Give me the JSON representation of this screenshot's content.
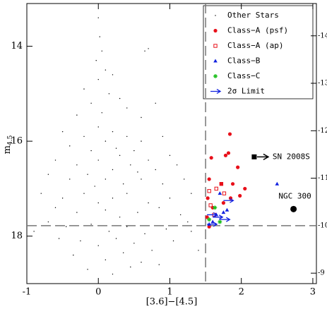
{
  "chart_data": {
    "type": "scatter",
    "xlabel": "[3.6]−[4.5]",
    "ylabel": "m",
    "ylabel_sub": "4.5",
    "xlim": [
      -1,
      3.05
    ],
    "xticks": [
      -1,
      0,
      1,
      2,
      3
    ],
    "ylim": [
      19.0,
      13.1
    ],
    "yticks": [
      14,
      16,
      18
    ],
    "y2lim": [
      -8.78,
      -14.68
    ],
    "y2ticks": [
      -9,
      -10,
      -11,
      -12,
      -13,
      -14
    ],
    "vline": 1.5,
    "hline": 17.78,
    "legend": "upper right",
    "series": [
      {
        "name": "Other Stars",
        "marker": "dot",
        "color": "#000000",
        "x": [
          0.0,
          0.02,
          0.05,
          -0.03,
          0.1,
          0.0,
          0.2,
          0.7,
          0.65,
          -0.2,
          0.15,
          0.3,
          -0.1,
          0.05,
          0.4,
          0.6,
          -0.3,
          0.8,
          -0.5,
          -0.2,
          0.0,
          0.2,
          0.4,
          0.6,
          0.9,
          -0.4,
          -0.1,
          0.1,
          0.3,
          0.5,
          0.7,
          1.0,
          -0.6,
          -0.3,
          0.0,
          0.2,
          0.45,
          0.8,
          1.1,
          -0.7,
          -0.4,
          -0.15,
          0.1,
          0.35,
          0.6,
          0.9,
          1.2,
          -0.05,
          0.25,
          0.55,
          -0.8,
          -0.5,
          -0.2,
          0.0,
          0.2,
          0.4,
          0.7,
          1.0,
          1.3,
          -0.6,
          -0.3,
          0.1,
          0.3,
          0.55,
          0.85,
          1.15,
          -0.7,
          -0.45,
          -0.1,
          0.15,
          0.4,
          0.65,
          0.95,
          1.25,
          -0.55,
          -0.25,
          0.0,
          0.25,
          0.5,
          0.75,
          1.05,
          -0.35,
          0.1,
          0.35,
          0.6,
          -0.15,
          0.2,
          0.45,
          0.85,
          1.3,
          1.4,
          -0.9
        ],
        "values": [
          13.4,
          13.8,
          14.1,
          14.3,
          14.5,
          14.7,
          14.6,
          14.05,
          14.1,
          14.9,
          15.0,
          15.1,
          15.2,
          15.4,
          15.3,
          15.5,
          15.45,
          15.2,
          15.8,
          15.9,
          15.7,
          15.8,
          15.9,
          16.0,
          15.9,
          16.1,
          16.2,
          16.0,
          16.3,
          16.2,
          16.4,
          16.3,
          16.4,
          16.5,
          16.4,
          16.6,
          16.5,
          16.6,
          16.5,
          16.7,
          16.8,
          16.7,
          16.8,
          16.9,
          16.8,
          16.9,
          16.8,
          16.95,
          16.15,
          16.65,
          17.1,
          17.2,
          17.1,
          17.3,
          17.2,
          17.1,
          17.3,
          17.2,
          17.1,
          17.4,
          17.5,
          17.45,
          17.6,
          17.5,
          17.4,
          17.55,
          17.7,
          17.8,
          17.75,
          17.9,
          17.8,
          17.95,
          17.85,
          17.7,
          18.05,
          18.1,
          18.2,
          18.05,
          18.15,
          18.3,
          18.1,
          18.4,
          18.5,
          18.35,
          18.55,
          18.7,
          18.8,
          18.65,
          18.6,
          17.9,
          18.3,
          17.9
        ]
      },
      {
        "name": "Class−A (psf)",
        "marker": "circle",
        "color": "#e8101a",
        "x": [
          1.55,
          1.53,
          1.52,
          1.58,
          1.72,
          1.78,
          1.82,
          1.84,
          1.88,
          1.95,
          2.05,
          1.98,
          1.85,
          1.6,
          1.75,
          1.55
        ],
        "values": [
          16.8,
          17.2,
          17.6,
          16.35,
          16.9,
          16.3,
          16.25,
          15.85,
          16.9,
          16.55,
          17.0,
          17.15,
          17.2,
          17.4,
          17.3,
          17.8
        ]
      },
      {
        "name": "Class−A (ap)",
        "marker": "square-open",
        "color": "#e8101a",
        "x": [
          1.55,
          1.65,
          1.76,
          1.72,
          1.57,
          1.62
        ],
        "values": [
          17.05,
          17.0,
          17.1,
          16.9,
          17.35,
          17.55
        ]
      },
      {
        "name": "Class−B",
        "marker": "triangle",
        "color": "#1020e0",
        "x": [
          1.7,
          1.75,
          1.65,
          1.6,
          2.5,
          1.8,
          1.55
        ],
        "values": [
          17.1,
          17.5,
          17.55,
          17.7,
          16.9,
          17.45,
          17.75
        ]
      },
      {
        "name": "Class−C",
        "marker": "star",
        "color": "#20c020",
        "x": [
          1.63,
          1.7,
          1.55
        ],
        "values": [
          17.4,
          17.7,
          17.65
        ]
      },
      {
        "name": "2σ Limit",
        "marker": "arrow",
        "color": "#1020e0",
        "x": [
          1.52,
          1.6,
          1.7,
          1.52,
          1.75
        ],
        "values": [
          17.55,
          17.6,
          17.65,
          17.75,
          17.25
        ]
      }
    ],
    "annotations": [
      {
        "text": "SN 2008S",
        "x": 2.18,
        "y": 16.33,
        "marker": "square"
      },
      {
        "text": "NGC 300",
        "x": 2.73,
        "y": 17.43,
        "marker": "circle"
      }
    ]
  }
}
